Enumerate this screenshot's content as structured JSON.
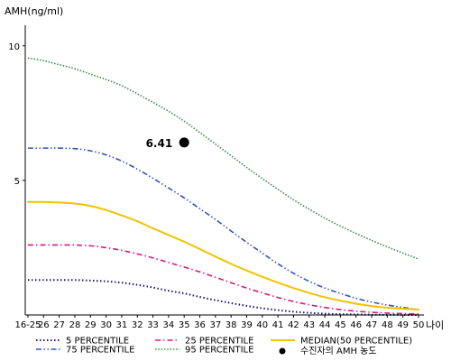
{
  "chart_data": {
    "type": "line",
    "ylabel": "AMH(ng/ml)",
    "xlabel": "나이",
    "categories": [
      "16-25",
      "26",
      "27",
      "28",
      "29",
      "30",
      "31",
      "32",
      "33",
      "34",
      "35",
      "36",
      "37",
      "38",
      "39",
      "40",
      "41",
      "42",
      "43",
      "44",
      "45",
      "46",
      "47",
      "48",
      "49",
      "50"
    ],
    "y_ticks": [
      "5",
      "10"
    ],
    "ylim": [
      0,
      11
    ],
    "grid": false,
    "legend_position": "bottom",
    "series": [
      {
        "name": "5 PERCENTILE",
        "color": "#1a1a6e",
        "dash": "dot",
        "values": [
          1.3,
          1.3,
          1.3,
          1.3,
          1.28,
          1.25,
          1.2,
          1.12,
          1.02,
          0.9,
          0.8,
          0.67,
          0.55,
          0.44,
          0.34,
          0.25,
          0.18,
          0.12,
          0.08,
          0.05,
          0.03,
          0.02,
          0.01,
          0.005,
          0.002,
          0.001
        ]
      },
      {
        "name": "25 PERCENTILE",
        "color": "#e0167e",
        "dash": "dashdot",
        "values": [
          2.6,
          2.6,
          2.6,
          2.6,
          2.57,
          2.5,
          2.4,
          2.27,
          2.12,
          1.95,
          1.78,
          1.6,
          1.4,
          1.2,
          1.0,
          0.82,
          0.65,
          0.5,
          0.38,
          0.28,
          0.2,
          0.14,
          0.1,
          0.07,
          0.05,
          0.04
        ]
      },
      {
        "name": "75 PERCENTILE",
        "color": "#3355bb",
        "dash": "dashdotdot",
        "values": [
          6.2,
          6.2,
          6.2,
          6.18,
          6.1,
          5.95,
          5.72,
          5.42,
          5.08,
          4.72,
          4.35,
          3.95,
          3.55,
          3.12,
          2.7,
          2.3,
          1.9,
          1.55,
          1.25,
          1.0,
          0.8,
          0.62,
          0.48,
          0.37,
          0.28,
          0.2
        ]
      },
      {
        "name": "95 PERCENTILE",
        "color": "#3a8a4a",
        "dash": "dense-dot",
        "values": [
          9.55,
          9.45,
          9.3,
          9.15,
          8.95,
          8.75,
          8.52,
          8.22,
          7.9,
          7.57,
          7.2,
          6.78,
          6.35,
          5.92,
          5.48,
          5.07,
          4.67,
          4.28,
          3.93,
          3.6,
          3.3,
          3.03,
          2.77,
          2.53,
          2.3,
          2.08
        ]
      },
      {
        "name": "MEDIAN(50 PERCENTILE)",
        "color": "#f2c300",
        "dash": "solid",
        "values": [
          4.2,
          4.2,
          4.18,
          4.14,
          4.05,
          3.9,
          3.7,
          3.48,
          3.22,
          2.97,
          2.72,
          2.45,
          2.17,
          1.9,
          1.65,
          1.42,
          1.2,
          1.0,
          0.82,
          0.66,
          0.53,
          0.42,
          0.33,
          0.27,
          0.23,
          0.2
        ]
      }
    ],
    "point": {
      "name": "수진자의 AMH 농도",
      "x": "35",
      "y": 6.41,
      "label": "6.41",
      "color": "#000000"
    }
  }
}
